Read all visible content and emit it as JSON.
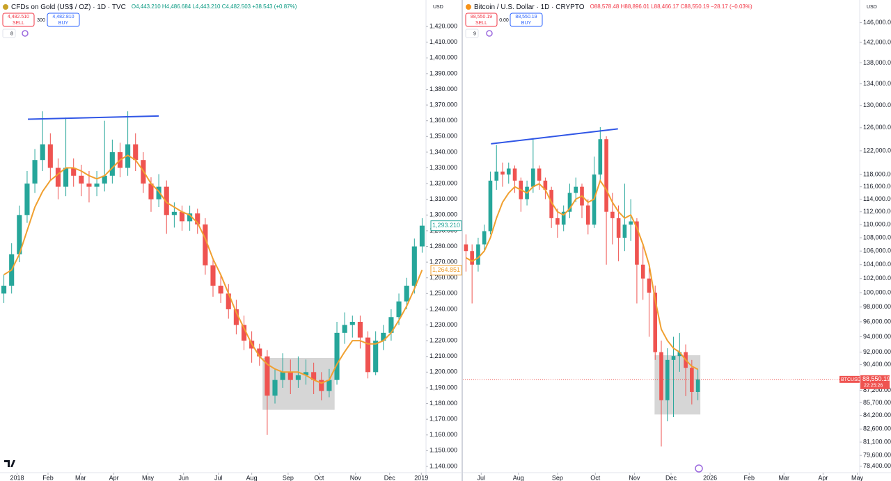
{
  "chart_data": [
    {
      "type": "candlestick",
      "title": "CFDs on Gold (US$ / OZ) · 1D · TVC",
      "quote": "O4,443.210 H4,486.684 L4,443.210 C4,482.503 +38.543 (+0.87%)",
      "sell_price": "4,482.510",
      "sell_label": "SELL",
      "spread": "300",
      "buy_price": "4,482.810",
      "buy_label": "BUY",
      "indicator_count": "8",
      "currency": "USD",
      "log": false,
      "ylim": [
        1136,
        1428
      ],
      "yticks": [
        {
          "value": 1140,
          "label": "1,140.000"
        },
        {
          "value": 1150,
          "label": "1,150.000"
        },
        {
          "value": 1160,
          "label": "1,160.000"
        },
        {
          "value": 1170,
          "label": "1,170.000"
        },
        {
          "value": 1180,
          "label": "1,180.000"
        },
        {
          "value": 1190,
          "label": "1,190.000"
        },
        {
          "value": 1200,
          "label": "1,200.000"
        },
        {
          "value": 1210,
          "label": "1,210.000"
        },
        {
          "value": 1220,
          "label": "1,220.000"
        },
        {
          "value": 1230,
          "label": "1,230.000"
        },
        {
          "value": 1240,
          "label": "1,240.000"
        },
        {
          "value": 1250,
          "label": "1,250.000"
        },
        {
          "value": 1260,
          "label": "1,260.000"
        },
        {
          "value": 1270,
          "label": "1,270.000"
        },
        {
          "value": 1280,
          "label": "1,280.000"
        },
        {
          "value": 1290,
          "label": "1,290.000"
        },
        {
          "value": 1300,
          "label": "1,300.000"
        },
        {
          "value": 1310,
          "label": "1,310.000"
        },
        {
          "value": 1320,
          "label": "1,320.000"
        },
        {
          "value": 1330,
          "label": "1,330.000"
        },
        {
          "value": 1340,
          "label": "1,340.000"
        },
        {
          "value": 1350,
          "label": "1,350.000"
        },
        {
          "value": 1360,
          "label": "1,360.000"
        },
        {
          "value": 1370,
          "label": "1,370.000"
        },
        {
          "value": 1380,
          "label": "1,380.000"
        },
        {
          "value": 1390,
          "label": "1,390.000"
        },
        {
          "value": 1400,
          "label": "1,400.000"
        },
        {
          "value": 1410,
          "label": "1,410.000"
        },
        {
          "value": 1420,
          "label": "1,420.000"
        }
      ],
      "xticks": [
        {
          "value": 1.7,
          "label": "2018"
        },
        {
          "value": 5.7,
          "label": "Feb"
        },
        {
          "value": 9.9,
          "label": "Mar"
        },
        {
          "value": 14.2,
          "label": "Apr"
        },
        {
          "value": 18.6,
          "label": "May"
        },
        {
          "value": 23.2,
          "label": "Jun"
        },
        {
          "value": 27.7,
          "label": "Jul"
        },
        {
          "value": 32.0,
          "label": "Aug"
        },
        {
          "value": 36.7,
          "label": "Sep"
        },
        {
          "value": 40.7,
          "label": "Oct"
        },
        {
          "value": 45.4,
          "label": "Nov"
        },
        {
          "value": 49.8,
          "label": "Dec"
        },
        {
          "value": 53.9,
          "label": "2019"
        }
      ],
      "up_color": "#26a69a",
      "down_color": "#ef5350",
      "ma_color": "#f0a030",
      "ohlc": [
        [
          1250,
          1262,
          1244,
          1255
        ],
        [
          1255,
          1282,
          1250,
          1275
        ],
        [
          1275,
          1306,
          1270,
          1300
        ],
        [
          1300,
          1328,
          1295,
          1320
        ],
        [
          1320,
          1342,
          1314,
          1335
        ],
        [
          1335,
          1366,
          1328,
          1345
        ],
        [
          1345,
          1352,
          1322,
          1330
        ],
        [
          1330,
          1336,
          1310,
          1318
        ],
        [
          1318,
          1362,
          1312,
          1330
        ],
        [
          1330,
          1336,
          1318,
          1325
        ],
        [
          1325,
          1332,
          1312,
          1320
        ],
        [
          1320,
          1328,
          1308,
          1318
        ],
        [
          1318,
          1328,
          1312,
          1320
        ],
        [
          1320,
          1360,
          1315,
          1325
        ],
        [
          1325,
          1348,
          1320,
          1340
        ],
        [
          1340,
          1346,
          1324,
          1330
        ],
        [
          1330,
          1366,
          1325,
          1345
        ],
        [
          1345,
          1352,
          1328,
          1335
        ],
        [
          1335,
          1340,
          1314,
          1320
        ],
        [
          1320,
          1324,
          1302,
          1310
        ],
        [
          1310,
          1326,
          1305,
          1318
        ],
        [
          1318,
          1322,
          1288,
          1300
        ],
        [
          1300,
          1308,
          1292,
          1302
        ],
        [
          1302,
          1306,
          1290,
          1296
        ],
        [
          1296,
          1306,
          1290,
          1301
        ],
        [
          1301,
          1304,
          1288,
          1294
        ],
        [
          1294,
          1298,
          1262,
          1268
        ],
        [
          1268,
          1272,
          1248,
          1255
        ],
        [
          1255,
          1262,
          1244,
          1250
        ],
        [
          1250,
          1256,
          1234,
          1240
        ],
        [
          1240,
          1246,
          1224,
          1230
        ],
        [
          1230,
          1236,
          1214,
          1220
        ],
        [
          1220,
          1226,
          1206,
          1215
        ],
        [
          1215,
          1218,
          1204,
          1210
        ],
        [
          1210,
          1214,
          1160,
          1185
        ],
        [
          1185,
          1202,
          1180,
          1195
        ],
        [
          1195,
          1212,
          1190,
          1200
        ],
        [
          1200,
          1208,
          1186,
          1195
        ],
        [
          1195,
          1210,
          1190,
          1198
        ],
        [
          1198,
          1208,
          1192,
          1200
        ],
        [
          1200,
          1206,
          1186,
          1195
        ],
        [
          1195,
          1200,
          1182,
          1188
        ],
        [
          1188,
          1202,
          1184,
          1195
        ],
        [
          1195,
          1232,
          1192,
          1225
        ],
        [
          1225,
          1238,
          1218,
          1230
        ],
        [
          1230,
          1236,
          1222,
          1232
        ],
        [
          1232,
          1236,
          1215,
          1222
        ],
        [
          1222,
          1226,
          1196,
          1200
        ],
        [
          1200,
          1226,
          1198,
          1220
        ],
        [
          1220,
          1230,
          1214,
          1225
        ],
        [
          1225,
          1240,
          1220,
          1235
        ],
        [
          1235,
          1250,
          1230,
          1245
        ],
        [
          1245,
          1260,
          1240,
          1255
        ],
        [
          1255,
          1285,
          1250,
          1280
        ],
        [
          1280,
          1298,
          1276,
          1293.21
        ]
      ],
      "ma": [
        1262,
        1265,
        1275,
        1290,
        1305,
        1315,
        1322,
        1326,
        1330,
        1330,
        1328,
        1325,
        1323,
        1325,
        1330,
        1335,
        1338,
        1335,
        1328,
        1320,
        1315,
        1308,
        1305,
        1302,
        1300,
        1295,
        1285,
        1272,
        1262,
        1250,
        1238,
        1228,
        1218,
        1210,
        1205,
        1202,
        1200,
        1200,
        1200,
        1198,
        1195,
        1193,
        1195,
        1205,
        1213,
        1220,
        1220,
        1218,
        1218,
        1220,
        1225,
        1233,
        1242,
        1253,
        1265
      ],
      "trendline": {
        "x": [
          3.1,
          20.0
        ],
        "y": [
          1361,
          1363
        ],
        "color": "#3056e6"
      },
      "box": {
        "x": [
          33.4,
          42.7
        ],
        "y": [
          1176,
          1209
        ]
      },
      "last_price": {
        "value": 1293.21,
        "label": "1,293.210"
      },
      "ma_last": {
        "value": 1264.851,
        "label": "1,264.851"
      }
    },
    {
      "type": "candlestick",
      "title": "Bitcoin / U.S. Dollar · 1D · CRYPTO",
      "quote": "O88,578.48 H88,896.01 L88,466.17 C88,550.19 −28.17 (−0.03%)",
      "sell_price": "88,550.19",
      "sell_label": "SELL",
      "spread": "0.00",
      "buy_price": "88,550.19",
      "buy_label": "BUY",
      "indicator_count": "9",
      "currency": "USD",
      "log": true,
      "ylim": [
        77700,
        147800
      ],
      "yticks": [
        {
          "value": 78400,
          "label": "78,400.00"
        },
        {
          "value": 79600,
          "label": "79,600.00"
        },
        {
          "value": 81100,
          "label": "81,100.00"
        },
        {
          "value": 82600,
          "label": "82,600.00"
        },
        {
          "value": 84200,
          "label": "84,200.00"
        },
        {
          "value": 85700,
          "label": "85,700.00"
        },
        {
          "value": 87200,
          "label": "87,200.00"
        },
        {
          "value": 90400,
          "label": "90,400.00"
        },
        {
          "value": 92000,
          "label": "92,000.00"
        },
        {
          "value": 94000,
          "label": "94,000.00"
        },
        {
          "value": 96000,
          "label": "96,000.00"
        },
        {
          "value": 98000,
          "label": "98,000.00"
        },
        {
          "value": 100000,
          "label": "100,000.00"
        },
        {
          "value": 102000,
          "label": "102,000.00"
        },
        {
          "value": 104000,
          "label": "104,000.00"
        },
        {
          "value": 106000,
          "label": "106,000.00"
        },
        {
          "value": 108000,
          "label": "108,000.00"
        },
        {
          "value": 110000,
          "label": "110,000.00"
        },
        {
          "value": 112000,
          "label": "112,000.00"
        },
        {
          "value": 114000,
          "label": "114,000.00"
        },
        {
          "value": 116000,
          "label": "116,000.00"
        },
        {
          "value": 118000,
          "label": "118,000.00"
        },
        {
          "value": 122000,
          "label": "122,000.00"
        },
        {
          "value": 126000,
          "label": "126,000.00"
        },
        {
          "value": 130000,
          "label": "130,000.00"
        },
        {
          "value": 134000,
          "label": "134,000.00"
        },
        {
          "value": 138000,
          "label": "138,000.00"
        },
        {
          "value": 142000,
          "label": "142,000.00"
        },
        {
          "value": 146000,
          "label": "146,000.00"
        }
      ],
      "xticks": [
        {
          "value": 2.5,
          "label": "Jul"
        },
        {
          "value": 8.6,
          "label": "Aug"
        },
        {
          "value": 15.0,
          "label": "Sep"
        },
        {
          "value": 21.2,
          "label": "Oct"
        },
        {
          "value": 27.6,
          "label": "Nov"
        },
        {
          "value": 33.6,
          "label": "Dec"
        },
        {
          "value": 40.0,
          "label": "2026"
        },
        {
          "value": 46.4,
          "label": "Feb"
        },
        {
          "value": 52.1,
          "label": "Mar"
        },
        {
          "value": 58.5,
          "label": "Apr"
        },
        {
          "value": 64.1,
          "label": "May"
        }
      ],
      "up_color": "#26a69a",
      "down_color": "#ef5350",
      "ma_color": "#f0a030",
      "ohlc": [
        [
          107000,
          108500,
          103000,
          106000
        ],
        [
          106000,
          107000,
          98500,
          104000
        ],
        [
          104000,
          108000,
          103000,
          107000
        ],
        [
          107000,
          110000,
          106000,
          109000
        ],
        [
          109000,
          118500,
          108500,
          117000
        ],
        [
          117000,
          123000,
          115500,
          118500
        ],
        [
          118500,
          120000,
          116000,
          118000
        ],
        [
          118000,
          120000,
          116500,
          119000
        ],
        [
          119000,
          119500,
          115000,
          117000
        ],
        [
          117000,
          117500,
          112000,
          114000
        ],
        [
          114000,
          117000,
          113000,
          116000
        ],
        [
          116000,
          124200,
          115000,
          119000
        ],
        [
          119000,
          119500,
          115500,
          117000
        ],
        [
          117000,
          117500,
          114000,
          115500
        ],
        [
          115500,
          116000,
          109500,
          111000
        ],
        [
          111000,
          112500,
          108000,
          110000
        ],
        [
          110000,
          113000,
          109000,
          112000
        ],
        [
          112000,
          116500,
          111000,
          115000
        ],
        [
          115000,
          117500,
          113500,
          116000
        ],
        [
          116000,
          116500,
          111000,
          113000
        ],
        [
          113000,
          114000,
          108500,
          110000
        ],
        [
          110000,
          121000,
          109500,
          118000
        ],
        [
          118000,
          126100,
          117000,
          124000
        ],
        [
          124000,
          124500,
          104000,
          112000
        ],
        [
          112000,
          115000,
          107000,
          111000
        ],
        [
          111000,
          113000,
          104500,
          108000
        ],
        [
          108000,
          116500,
          106000,
          110000
        ],
        [
          110000,
          114000,
          107500,
          110500
        ],
        [
          110500,
          111000,
          98500,
          104000
        ],
        [
          104000,
          107000,
          99000,
          102000
        ],
        [
          102000,
          103500,
          94000,
          100000
        ],
        [
          100000,
          101000,
          91000,
          92000
        ],
        [
          92000,
          93500,
          80600,
          86000
        ],
        [
          86000,
          92500,
          83500,
          91000
        ],
        [
          91000,
          94000,
          84000,
          91500
        ],
        [
          91500,
          94500,
          89500,
          92000
        ],
        [
          92000,
          93000,
          86500,
          90000
        ],
        [
          90000,
          91000,
          85500,
          87000
        ],
        [
          87000,
          89800,
          86000,
          88550.19
        ]
      ],
      "ma": [
        105000,
        104500,
        105000,
        106000,
        108000,
        111000,
        113500,
        115000,
        116000,
        115500,
        115000,
        116000,
        116500,
        115500,
        113500,
        112000,
        111500,
        112500,
        114000,
        114500,
        113500,
        114000,
        117000,
        115500,
        113500,
        112000,
        111000,
        111500,
        109500,
        107000,
        104000,
        99000,
        95000,
        93500,
        92500,
        92000,
        91000,
        90200,
        89800
      ],
      "trendline": {
        "x": [
          4.1,
          24.9
        ],
        "y": [
          123200,
          125800
        ],
        "color": "#3056e6"
      },
      "box": {
        "x": [
          30.9,
          38.4
        ],
        "y": [
          84300,
          91600
        ]
      },
      "last_price": {
        "value": 88550.19,
        "label": "88,550.19"
      },
      "symbol": "BTCUSD",
      "countdown": "22:25:26"
    }
  ]
}
